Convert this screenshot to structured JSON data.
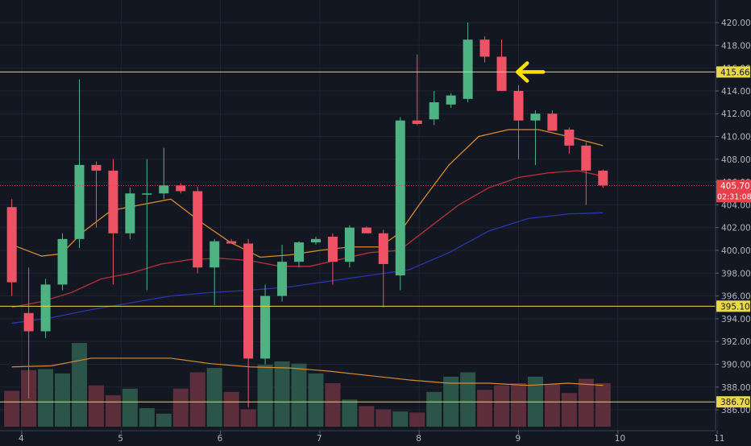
{
  "colors": {
    "background": "#131722",
    "grid": "#1f2433",
    "up": "#4db383",
    "down": "#ef5265",
    "up_volume": "#2b5548",
    "down_volume": "#5c2e3b",
    "level_line": "#e8d84a",
    "price_line": "#e8404b",
    "ma_fast": "#d98a2e",
    "ma_mid": "#b8303a",
    "ma_slow": "#2a36b0",
    "volume_ma": "#d98a2e",
    "axis_text": "#b2b5be",
    "arrow": "#ffe000"
  },
  "chart_data": {
    "type": "candlestick",
    "title": "",
    "xlabel": "",
    "ylabel": "",
    "ylim": [
      385.4,
      421.2
    ],
    "y_ticks": [
      "420.00",
      "418.00",
      "416.00",
      "414.00",
      "412.00",
      "410.00",
      "408.00",
      "406.00",
      "404.00",
      "402.00",
      "400.00",
      "398.00",
      "396.00",
      "394.00",
      "392.00",
      "390.00",
      "388.00",
      "386.00"
    ],
    "x_ticks": [
      "4",
      "5",
      "6",
      "7",
      "8",
      "9",
      "10",
      "11"
    ],
    "xlim": [
      3.9,
      11.0
    ],
    "grid": true,
    "candles": [
      {
        "x": 3.9,
        "o": 403.8,
        "h": 404.5,
        "l": 396.0,
        "c": 397.2
      },
      {
        "x": 4.07,
        "o": 394.5,
        "h": 398.5,
        "l": 387.0,
        "c": 392.9
      },
      {
        "x": 4.24,
        "o": 392.9,
        "h": 397.5,
        "l": 392.3,
        "c": 397.0
      },
      {
        "x": 4.41,
        "o": 397.0,
        "h": 401.5,
        "l": 396.5,
        "c": 401.0
      },
      {
        "x": 4.58,
        "o": 401.0,
        "h": 415.0,
        "l": 400.2,
        "c": 407.5
      },
      {
        "x": 4.75,
        "o": 407.5,
        "h": 407.8,
        "l": 402.0,
        "c": 407.0
      },
      {
        "x": 4.92,
        "o": 407.0,
        "h": 408.0,
        "l": 397.0,
        "c": 401.5
      },
      {
        "x": 5.09,
        "o": 401.5,
        "h": 405.5,
        "l": 401.0,
        "c": 405.0
      },
      {
        "x": 5.26,
        "o": 405.0,
        "h": 408.0,
        "l": 396.5,
        "c": 405.0
      },
      {
        "x": 5.43,
        "o": 405.0,
        "h": 409.0,
        "l": 404.5,
        "c": 405.7
      },
      {
        "x": 5.6,
        "o": 405.7,
        "h": 405.9,
        "l": 405.0,
        "c": 405.2
      },
      {
        "x": 5.77,
        "o": 405.2,
        "h": 405.6,
        "l": 398.0,
        "c": 398.5
      },
      {
        "x": 5.94,
        "o": 398.5,
        "h": 401.0,
        "l": 395.2,
        "c": 400.8
      },
      {
        "x": 6.11,
        "o": 400.8,
        "h": 401.0,
        "l": 400.6,
        "c": 400.6
      },
      {
        "x": 6.28,
        "o": 400.6,
        "h": 401.0,
        "l": 386.2,
        "c": 390.5
      },
      {
        "x": 6.45,
        "o": 390.5,
        "h": 397.0,
        "l": 390.0,
        "c": 396.0
      },
      {
        "x": 6.62,
        "o": 396.0,
        "h": 400.5,
        "l": 395.5,
        "c": 399.0
      },
      {
        "x": 6.79,
        "o": 399.0,
        "h": 400.8,
        "l": 398.5,
        "c": 400.7
      },
      {
        "x": 6.96,
        "o": 400.7,
        "h": 401.2,
        "l": 400.5,
        "c": 401.0
      },
      {
        "x": 7.13,
        "o": 401.2,
        "h": 401.5,
        "l": 397.0,
        "c": 399.0
      },
      {
        "x": 7.3,
        "o": 399.0,
        "h": 402.2,
        "l": 398.5,
        "c": 402.0
      },
      {
        "x": 7.47,
        "o": 402.0,
        "h": 402.1,
        "l": 401.5,
        "c": 401.5
      },
      {
        "x": 7.64,
        "o": 401.5,
        "h": 401.8,
        "l": 395.0,
        "c": 398.8
      },
      {
        "x": 7.81,
        "o": 397.8,
        "h": 411.7,
        "l": 396.5,
        "c": 411.4
      },
      {
        "x": 7.98,
        "o": 411.4,
        "h": 417.2,
        "l": 411.0,
        "c": 411.1
      },
      {
        "x": 8.15,
        "o": 411.5,
        "h": 414.0,
        "l": 411.0,
        "c": 413.0
      },
      {
        "x": 8.32,
        "o": 412.8,
        "h": 413.8,
        "l": 412.5,
        "c": 413.6
      },
      {
        "x": 8.49,
        "o": 413.3,
        "h": 420.0,
        "l": 413.0,
        "c": 418.5
      },
      {
        "x": 8.66,
        "o": 418.5,
        "h": 418.8,
        "l": 416.5,
        "c": 417.0
      },
      {
        "x": 8.83,
        "o": 417.0,
        "h": 418.5,
        "l": 414.0,
        "c": 414.0
      },
      {
        "x": 9.0,
        "o": 414.0,
        "h": 414.5,
        "l": 408.0,
        "c": 411.4
      },
      {
        "x": 9.17,
        "o": 411.4,
        "h": 412.3,
        "l": 407.5,
        "c": 412.0
      },
      {
        "x": 9.34,
        "o": 412.0,
        "h": 412.3,
        "l": 410.5,
        "c": 410.5
      },
      {
        "x": 9.51,
        "o": 410.6,
        "h": 410.8,
        "l": 408.5,
        "c": 409.2
      },
      {
        "x": 9.68,
        "o": 409.2,
        "h": 409.5,
        "l": 404.0,
        "c": 407.0
      },
      {
        "x": 9.85,
        "o": 407.0,
        "h": 407.1,
        "l": 405.5,
        "c": 405.7
      }
    ],
    "volume": {
      "ylim": [
        0,
        100
      ],
      "values": [
        33,
        52,
        53,
        49,
        77,
        38,
        29,
        35,
        17,
        12,
        35,
        50,
        54,
        32,
        16,
        57,
        60,
        58,
        49,
        40,
        25,
        19,
        16,
        14,
        13,
        32,
        46,
        50,
        34,
        38,
        40,
        46,
        39,
        31,
        44,
        40
      ]
    },
    "ma_fast": {
      "x": [
        3.9,
        4.2,
        4.4,
        4.6,
        4.9,
        5.2,
        5.5,
        5.8,
        6.1,
        6.4,
        6.7,
        7.0,
        7.3,
        7.6,
        7.8,
        8.0,
        8.3,
        8.6,
        8.9,
        9.2,
        9.5,
        9.85
      ],
      "y": [
        400.5,
        399.5,
        399.7,
        401.5,
        403.5,
        404.0,
        404.5,
        402.5,
        400.7,
        399.4,
        399.6,
        400.0,
        400.3,
        400.3,
        401.5,
        404.0,
        407.5,
        410.0,
        410.6,
        410.6,
        410.0,
        409.2
      ]
    },
    "ma_mid": {
      "x": [
        3.9,
        4.2,
        4.5,
        4.8,
        5.1,
        5.4,
        5.7,
        6.0,
        6.3,
        6.6,
        6.9,
        7.2,
        7.5,
        7.8,
        8.1,
        8.4,
        8.7,
        9.0,
        9.3,
        9.6,
        9.85
      ],
      "y": [
        395.0,
        395.5,
        396.3,
        397.5,
        398.0,
        398.8,
        399.2,
        399.3,
        399.1,
        398.6,
        398.6,
        399.2,
        399.8,
        400.0,
        402.0,
        404.0,
        405.5,
        406.4,
        406.8,
        407.0,
        406.5
      ]
    },
    "ma_slow": {
      "x": [
        3.9,
        4.3,
        4.7,
        5.1,
        5.5,
        5.9,
        6.3,
        6.7,
        7.1,
        7.5,
        7.9,
        8.3,
        8.7,
        9.1,
        9.5,
        9.85
      ],
      "y": [
        393.6,
        394.1,
        394.8,
        395.4,
        396.0,
        396.3,
        396.5,
        396.8,
        397.3,
        397.8,
        398.3,
        399.8,
        401.7,
        402.8,
        403.2,
        403.3
      ]
    },
    "volume_ma": {
      "x": [
        3.9,
        4.3,
        4.7,
        5.1,
        5.5,
        5.9,
        6.3,
        6.7,
        7.1,
        7.5,
        7.9,
        8.3,
        8.7,
        9.1,
        9.5,
        9.85
      ],
      "y": [
        55,
        56,
        63,
        63,
        63,
        58,
        55,
        54,
        51,
        47,
        43,
        40,
        40,
        38,
        40,
        38
      ]
    },
    "horizontal_levels": [
      {
        "price": 415.66,
        "label": "415.66",
        "color": "#e8d84a"
      },
      {
        "price": 395.1,
        "label": "395.10",
        "color": "#e8d84a"
      },
      {
        "price": 386.7,
        "label": "386.70",
        "color": "#e8d84a"
      }
    ],
    "last_price": {
      "price": 405.7,
      "label": "405.70",
      "countdown": "02:31:08"
    },
    "annotation": {
      "type": "arrow",
      "x": 8.99,
      "price": 415.66,
      "pointing": "left"
    }
  }
}
